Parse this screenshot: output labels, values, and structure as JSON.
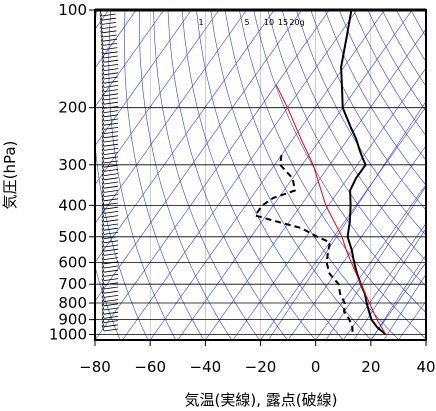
{
  "chart_data": {
    "type": "skew-t log-p",
    "xlabel": "気温(実線), 露点(破線)",
    "ylabel": "気圧(hPa)",
    "xlim": [
      -80,
      40
    ],
    "ylim": [
      1040,
      100
    ],
    "x_ticks": [
      -80,
      -60,
      -40,
      -20,
      0,
      20,
      40
    ],
    "x_tick_labels": [
      "−80",
      "−60",
      "−40",
      "−20",
      "0",
      "20",
      "40"
    ],
    "y_scale": "log",
    "y_ticks": [
      100,
      200,
      300,
      400,
      500,
      600,
      700,
      800,
      900,
      1000
    ],
    "y_tick_labels": [
      "100",
      "200",
      "300",
      "400",
      "500",
      "600",
      "700",
      "800",
      "900",
      "1000"
    ],
    "grid": true,
    "mixing_ratio_labels": [
      "1",
      "5",
      "10",
      "15",
      "20g"
    ],
    "colors": {
      "isopleths": "#3344dd",
      "temperature": "#000000",
      "dewpoint": "#000000",
      "parcel": "#ff0000",
      "barbs": "#000000"
    },
    "series": [
      {
        "role": "temperature",
        "style": "solid",
        "points": [
          [
            100,
            -72
          ],
          [
            120,
            -67
          ],
          [
            150,
            -61
          ],
          [
            180,
            -54
          ],
          [
            200,
            -50
          ],
          [
            230,
            -42
          ],
          [
            250,
            -37
          ],
          [
            270,
            -33
          ],
          [
            285,
            -30
          ],
          [
            300,
            -27
          ],
          [
            330,
            -27
          ],
          [
            360,
            -26
          ],
          [
            400,
            -22
          ],
          [
            450,
            -18
          ],
          [
            500,
            -15
          ],
          [
            550,
            -10
          ],
          [
            600,
            -6
          ],
          [
            650,
            -2
          ],
          [
            700,
            2
          ],
          [
            750,
            6
          ],
          [
            800,
            9
          ],
          [
            850,
            12
          ],
          [
            900,
            15
          ],
          [
            950,
            19
          ],
          [
            1000,
            24
          ]
        ]
      },
      {
        "role": "dewpoint",
        "style": "dashed",
        "points": [
          [
            280,
            -60
          ],
          [
            300,
            -58
          ],
          [
            330,
            -50
          ],
          [
            360,
            -46
          ],
          [
            380,
            -52
          ],
          [
            400,
            -54
          ],
          [
            430,
            -54
          ],
          [
            450,
            -44
          ],
          [
            470,
            -34
          ],
          [
            500,
            -26
          ],
          [
            520,
            -20
          ],
          [
            560,
            -18
          ],
          [
            600,
            -16
          ],
          [
            650,
            -12
          ],
          [
            700,
            -6
          ],
          [
            750,
            -3
          ],
          [
            800,
            1
          ],
          [
            850,
            3
          ],
          [
            900,
            7
          ],
          [
            950,
            10
          ],
          [
            1000,
            12
          ]
        ]
      },
      {
        "role": "parcel",
        "style": "solid",
        "points": [
          [
            170,
            -80
          ],
          [
            200,
            -70
          ],
          [
            250,
            -57
          ],
          [
            300,
            -46
          ],
          [
            400,
            -31
          ],
          [
            500,
            -17
          ],
          [
            550,
            -12
          ],
          [
            600,
            -7
          ],
          [
            700,
            2
          ],
          [
            800,
            10
          ],
          [
            900,
            17
          ],
          [
            1000,
            24
          ]
        ]
      }
    ]
  }
}
